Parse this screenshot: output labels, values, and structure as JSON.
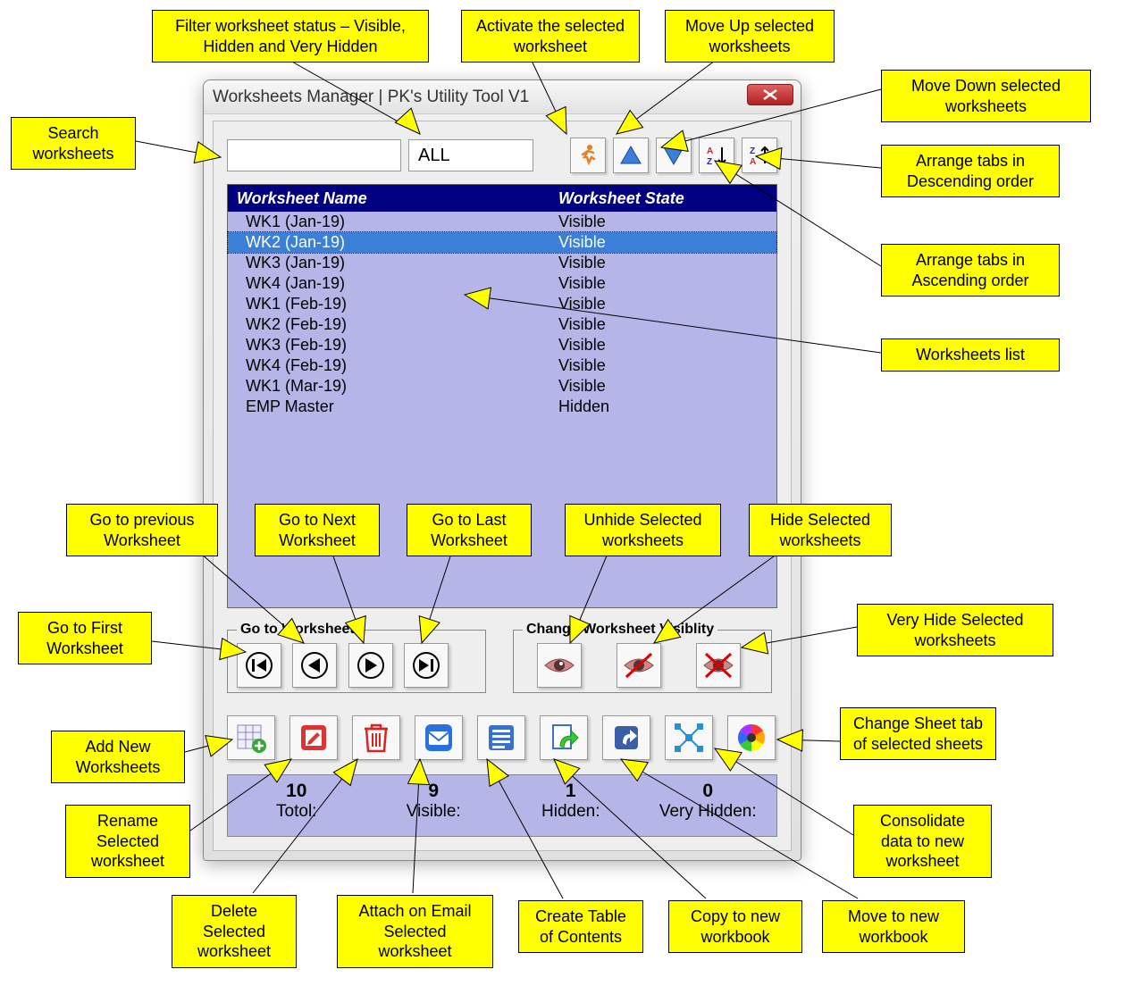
{
  "window": {
    "title": "Worksheets Manager | PK's Utility Tool V1"
  },
  "toolbar": {
    "search_value": "",
    "filter_value": "ALL"
  },
  "list": {
    "header_name": "Worksheet Name",
    "header_state": "Worksheet State",
    "rows": [
      {
        "name": "WK1 (Jan-19)",
        "state": "Visible",
        "selected": false
      },
      {
        "name": "WK2 (Jan-19)",
        "state": "Visible",
        "selected": true
      },
      {
        "name": "WK3 (Jan-19)",
        "state": "Visible",
        "selected": false
      },
      {
        "name": "WK4 (Jan-19)",
        "state": "Visible",
        "selected": false
      },
      {
        "name": "WK1 (Feb-19)",
        "state": "Visible",
        "selected": false
      },
      {
        "name": "WK2 (Feb-19)",
        "state": "Visible",
        "selected": false
      },
      {
        "name": "WK3 (Feb-19)",
        "state": "Visible",
        "selected": false
      },
      {
        "name": "WK4 (Feb-19)",
        "state": "Visible",
        "selected": false
      },
      {
        "name": "WK1 (Mar-19)",
        "state": "Visible",
        "selected": false
      },
      {
        "name": "EMP Master",
        "state": "Hidden",
        "selected": false
      }
    ]
  },
  "groups": {
    "goto_label": "Go to Worksheet",
    "visibility_label": "Change Worksheet Visiblity"
  },
  "stats": {
    "total_n": "10",
    "total_l": "Totol:",
    "visible_n": "9",
    "visible_l": "Visible:",
    "hidden_n": "1",
    "hidden_l": "Hidden:",
    "vh_n": "0",
    "vh_l": "Very Hidden:"
  },
  "callouts": {
    "search": "Search worksheets",
    "filter": "Filter worksheet status – Visible, Hidden and Very Hidden",
    "activate": "Activate the selected worksheet",
    "moveup": "Move Up selected worksheets",
    "movedown": "Move Down selected worksheets",
    "desc": "Arrange tabs in Descending order",
    "asc": "Arrange tabs in Ascending order",
    "wslist": "Worksheets list",
    "goprev": "Go to previous Worksheet",
    "gonext": "Go to Next Worksheet",
    "golast": "Go to Last Worksheet",
    "unhide": "Unhide Selected worksheets",
    "hide": "Hide Selected worksheets",
    "gofirst": "Go to First Worksheet",
    "veryhide": "Very Hide Selected worksheets",
    "addnew": "Add New Worksheets",
    "tabcolor": "Change Sheet tab of selected sheets",
    "rename": "Rename Selected worksheet",
    "consolidate": "Consolidate data to new worksheet",
    "delete": "Delete Selected worksheet",
    "email": "Attach on Email Selected worksheet",
    "toc": "Create Table of Contents",
    "copy": "Copy to new workbook",
    "move": "Move to new workbook"
  },
  "colors": {
    "callout_bg": "#ffff00",
    "header_bg": "#000080",
    "list_bg": "#b5b5e8",
    "selected_bg": "#3a7fd8"
  }
}
